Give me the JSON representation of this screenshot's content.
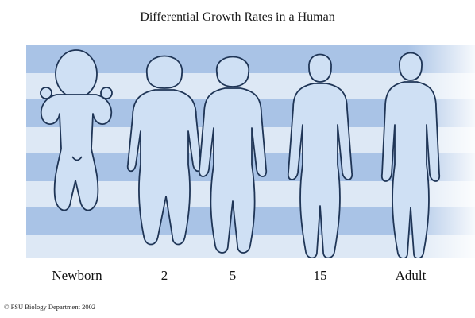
{
  "title": "Differential Growth Rates in a Human",
  "figures": [
    {
      "id": "newborn",
      "label": "Newborn"
    },
    {
      "id": "age-2",
      "label": "2"
    },
    {
      "id": "age-5",
      "label": "5"
    },
    {
      "id": "age-15",
      "label": "15"
    },
    {
      "id": "adult",
      "label": "Adult"
    }
  ],
  "colors": {
    "band_dark": "#a9c3e6",
    "band_light": "#dde8f5",
    "figure_fill": "#cfe0f4",
    "figure_outline": "#1f3556"
  },
  "copyright": "© PSU Biology Department 2002"
}
